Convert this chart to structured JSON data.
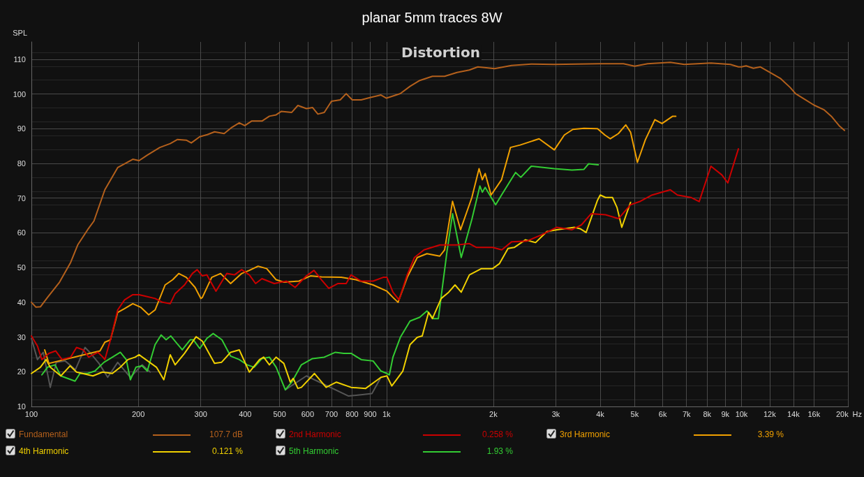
{
  "chart_data": {
    "type": "line",
    "title": "planar 5mm traces 8W",
    "ylabel": "SPL",
    "annotations": [
      "Distortion",
      "107.7 dB",
      "0.258 %",
      "3.39 %",
      "0.121 %",
      "1.93 %"
    ],
    "log": "x",
    "grid": true,
    "legend": "bottom",
    "xlim": [
      100,
      20000
    ],
    "ylim": [
      10,
      115
    ],
    "xticks": [
      100,
      200,
      300,
      400,
      500,
      600,
      700,
      800,
      900,
      {
        "value": 1000,
        "label": "1k"
      },
      {
        "value": 2000,
        "label": "2k"
      },
      {
        "value": 3000,
        "label": "3k"
      },
      {
        "value": 4000,
        "label": "4k"
      },
      {
        "value": 5000,
        "label": "5k"
      },
      {
        "value": 6000,
        "label": "6k"
      },
      {
        "value": 7000,
        "label": "7k"
      },
      {
        "value": 8000,
        "label": "8k"
      },
      {
        "value": 9000,
        "label": "9k"
      },
      {
        "value": 10000,
        "label": "10k"
      },
      {
        "value": 12000,
        "label": "12k"
      },
      {
        "value": 14000,
        "label": "14k"
      },
      {
        "value": 16000,
        "label": "16k"
      },
      {
        "value": 20000,
        "label": "20k"
      }
    ],
    "xlabel": "Hz",
    "yticks": [
      10,
      20,
      30,
      40,
      50,
      60,
      70,
      80,
      90,
      100,
      110
    ],
    "series": [
      {
        "name": "Fundamental",
        "color": "#b4601c",
        "x": [
          100,
          103,
          106,
          111,
          120,
          129,
          135,
          144,
          150,
          161,
          175,
          181,
          193,
          201,
          212,
          230,
          246,
          258,
          273,
          282,
          298,
          313,
          328,
          349,
          367,
          385,
          399,
          417,
          446,
          468,
          489,
          506,
          541,
          563,
          595,
          619,
          641,
          668,
          700,
          741,
          770,
          801,
          849,
          902,
          965,
          1000,
          1043,
          1094,
          1165,
          1241,
          1347,
          1458,
          1580,
          1712,
          1808,
          2017,
          2250,
          2557,
          2970,
          3970,
          4650,
          5000,
          5440,
          6300,
          6900,
          8200,
          9300,
          9800,
          10000,
          10300,
          10800,
          11300,
          11900,
          12900,
          13700,
          14200,
          15000,
          16000,
          17100,
          17900,
          18900,
          19500
        ],
        "values": [
          40,
          38.6,
          38.7,
          41.4,
          45.8,
          51.5,
          56.5,
          60.9,
          63.4,
          72.4,
          78.8,
          79.6,
          81.2,
          80.8,
          82.4,
          84.6,
          85.7,
          86.9,
          86.7,
          85.9,
          87.7,
          88.3,
          89.1,
          88.6,
          90.4,
          91.7,
          90.9,
          92.2,
          92.2,
          93.6,
          94,
          95,
          94.7,
          96.7,
          95.8,
          96.1,
          94.2,
          94.7,
          97.9,
          98.3,
          100.1,
          98.3,
          98.3,
          99,
          99.7,
          98.8,
          99.4,
          100.1,
          102.2,
          103.9,
          105.1,
          105.1,
          106.2,
          106.9,
          107.8,
          107.3,
          108.2,
          108.6,
          108.5,
          108.7,
          108.7,
          108,
          108.7,
          109.1,
          108.5,
          108.9,
          108.5,
          107.8,
          107.8,
          108.1,
          107.4,
          107.8,
          106.5,
          104.4,
          101.9,
          100.1,
          98.6,
          96.8,
          95.4,
          93.6,
          90.7,
          89.5
        ]
      },
      {
        "name": "2nd Harmonic",
        "color": "#cc0000",
        "x": [
          100,
          104,
          107,
          112,
          117,
          122,
          129,
          134,
          140,
          145,
          154,
          159,
          161,
          167,
          175,
          183,
          193,
          201,
          209,
          223,
          234,
          246,
          254,
          270,
          284,
          293,
          303,
          312,
          331,
          355,
          373,
          391,
          411,
          428,
          446,
          483,
          523,
          553,
          595,
          625,
          656,
          688,
          729,
          770,
          795,
          849,
          917,
          979,
          1003,
          1043,
          1085,
          1144,
          1199,
          1276,
          1413,
          1580,
          1712,
          1793,
          1990,
          2113,
          2250,
          2480,
          2730,
          3020,
          3330,
          3540,
          3770,
          4140,
          4500,
          4870,
          5190,
          5600,
          6300,
          6600,
          7200,
          7600,
          8200,
          8800,
          9150,
          9800
        ],
        "values": [
          30.3,
          27.4,
          23.5,
          25.3,
          26,
          23.5,
          24.2,
          27,
          26.3,
          24.2,
          25.6,
          24.2,
          23.5,
          29.2,
          37.8,
          40.7,
          42.2,
          42.2,
          41.8,
          41.1,
          40,
          39.6,
          42.5,
          45,
          48.3,
          49.4,
          47.6,
          47.9,
          43.2,
          48.3,
          47.9,
          49.4,
          47.9,
          45.4,
          46.8,
          45.4,
          46.1,
          44.3,
          47.6,
          49.2,
          46.5,
          44,
          45.4,
          45.4,
          47.9,
          46.1,
          46.1,
          47.2,
          47.2,
          42.9,
          40.7,
          47.9,
          52.9,
          55.1,
          56.5,
          56.5,
          56.9,
          55.8,
          55.8,
          55.1,
          57.4,
          57.6,
          59.4,
          61.6,
          60.9,
          62.3,
          65.5,
          65.2,
          64.1,
          68.1,
          69.1,
          70.9,
          72.4,
          70.9,
          70.2,
          69,
          79.2,
          76.7,
          74.4,
          84.2
        ]
      },
      {
        "name": "3rd Harmonic",
        "color": "#f0a000",
        "x": [
          109,
          112,
          150,
          156,
          161,
          167,
          175,
          183,
          193,
          203,
          214,
          223,
          238,
          250,
          260,
          273,
          289,
          300,
          303,
          322,
          341,
          364,
          391,
          411,
          435,
          460,
          489,
          514,
          567,
          611,
          656,
          746,
          820,
          917,
          1003,
          1043,
          1078,
          1144,
          1221,
          1300,
          1413,
          1458,
          1535,
          1617,
          1740,
          1823,
          1862,
          1897,
          1971,
          2109,
          2235,
          2380,
          2690,
          2970,
          3170,
          3350,
          3600,
          3930,
          4120,
          4270,
          4500,
          4720,
          4870,
          5090,
          5360,
          5700,
          5970,
          6400,
          6530
        ],
        "values": [
          26.3,
          22.4,
          25.6,
          26,
          28.5,
          29.2,
          37.1,
          38.2,
          39.6,
          38.6,
          36.4,
          37.8,
          45,
          46.5,
          48.3,
          47.2,
          44.3,
          41.1,
          41.4,
          47.2,
          48.3,
          45.4,
          48.3,
          49.2,
          50.4,
          49.7,
          46.5,
          45.8,
          46.1,
          47.6,
          47.3,
          47.2,
          46.5,
          45,
          43.2,
          41.4,
          40,
          47.2,
          52.9,
          54,
          53.3,
          55.1,
          69.1,
          60.9,
          70.2,
          78.5,
          75.3,
          77.1,
          70.9,
          75.3,
          84.6,
          85.3,
          87.1,
          83.9,
          88.2,
          89.8,
          90.1,
          90,
          88.2,
          87.1,
          88.6,
          91.1,
          89,
          80.3,
          86.8,
          92.6,
          91.5,
          93.6,
          93.6
        ]
      },
      {
        "name": "4th Harmonic",
        "color": "#f0d000",
        "x": [
          100,
          106,
          110,
          113,
          121,
          128.5,
          134,
          149,
          158.6,
          169,
          178,
          187,
          196,
          201,
          225,
          236,
          246,
          254,
          270,
          291,
          303,
          328,
          343,
          364,
          385,
          411,
          439,
          451,
          468,
          489,
          514,
          536,
          546,
          563,
          576,
          627,
          676,
          723,
          795,
          874,
          965,
          1003,
          1035,
          1060,
          1112,
          1165,
          1221,
          1261,
          1314,
          1347,
          1426,
          1497,
          1560,
          1624,
          1712,
          1851,
          1990,
          2079,
          2200,
          2290,
          2463,
          2630,
          2830,
          3020,
          3380,
          3510,
          3650,
          3930,
          4000,
          4140,
          4330,
          4460,
          4600,
          4870
        ],
        "values": [
          19.5,
          21.3,
          23.5,
          21.3,
          18.8,
          21.7,
          19.9,
          18.8,
          19.9,
          19.5,
          21.3,
          23.5,
          24.2,
          24.9,
          21.3,
          17.7,
          24.9,
          22,
          25.3,
          30.1,
          28.8,
          22.4,
          22.7,
          25.6,
          26.3,
          19.9,
          23.5,
          24.2,
          22,
          24.2,
          22.4,
          17,
          18.1,
          15.2,
          15.5,
          19.5,
          15.5,
          17,
          15.5,
          15.2,
          18.4,
          18.8,
          15.9,
          17.3,
          20.2,
          27.8,
          29.9,
          30.3,
          37.1,
          35.3,
          41.1,
          42.9,
          45,
          42.9,
          47.9,
          49.7,
          49.7,
          51.1,
          55.5,
          55.8,
          58,
          57.2,
          60.4,
          60.9,
          61.6,
          61.2,
          60.1,
          69.4,
          70.9,
          70.2,
          70.2,
          67.3,
          61.6,
          68.8
        ]
      },
      {
        "name": "5th Harmonic",
        "color": "#33cc33",
        "x": [
          107,
          111,
          116.6,
          121,
          132.7,
          137,
          144,
          151,
          160,
          178,
          185,
          190,
          197,
          205,
          212,
          223,
          232,
          239.5,
          247,
          266,
          280,
          286,
          298,
          312,
          325,
          344,
          364,
          385,
          405,
          424,
          446,
          468,
          489,
          519,
          541,
          576,
          619,
          668,
          718,
          758,
          795,
          849,
          917,
          965,
          1003,
          1019,
          1043,
          1094,
          1165,
          1241,
          1300,
          1358,
          1400,
          1481,
          1535,
          1624,
          1740,
          1833,
          1862,
          1897,
          2030,
          2109,
          2310,
          2390,
          2557,
          2970,
          3330,
          3600,
          3710,
          3950
        ],
        "values": [
          19.1,
          21.3,
          22,
          18.8,
          17.3,
          19.5,
          19.5,
          20.2,
          22.7,
          25.6,
          23.5,
          17.7,
          21.3,
          21.7,
          20.2,
          27.8,
          30.6,
          29.2,
          30.3,
          26.3,
          29.2,
          29.2,
          26.7,
          29.6,
          31,
          29.2,
          24.5,
          23.5,
          22,
          21.3,
          23.8,
          24.2,
          21.3,
          14.8,
          17,
          22,
          23.8,
          24.2,
          25.6,
          25.3,
          25.3,
          23.5,
          23.1,
          20.2,
          19.5,
          19.1,
          24.2,
          29.9,
          34.6,
          35.7,
          37.5,
          35.3,
          35.3,
          54.7,
          65.5,
          52.9,
          63.9,
          73.5,
          71.7,
          73.1,
          68.1,
          70.9,
          77.4,
          76,
          79.2,
          78.5,
          78.1,
          78.3,
          79.9,
          79.6
        ]
      },
      {
        "color": "#555555",
        "x": [
          100,
          104,
          108,
          113,
          117.5,
          124.5,
          133,
          141.6,
          146,
          155,
          164,
          175,
          190,
          205,
          216,
          360,
          519,
          595,
          782,
          910,
          965
        ],
        "values": [
          29.6,
          23.5,
          25.6,
          15.5,
          22.7,
          23.1,
          20.6,
          27,
          25.6,
          22.4,
          18.4,
          22.7,
          18.4,
          22,
          19.9,
          null,
          14.8,
          18.8,
          13,
          13.7,
          18.4
        ]
      }
    ]
  }
}
